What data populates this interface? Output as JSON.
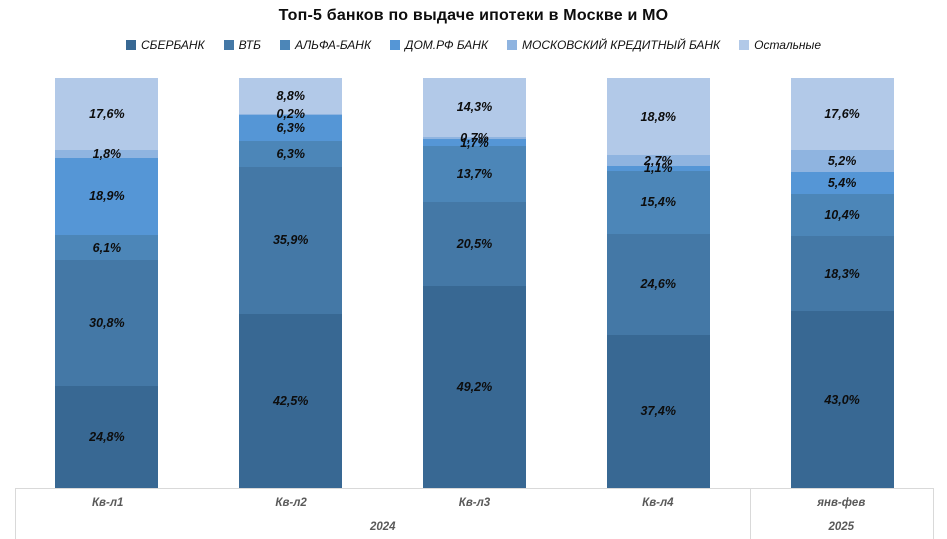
{
  "title": "Топ-5 банков по выдаче ипотеки в Москве и МО",
  "chart_data": {
    "type": "bar",
    "subtype": "stacked-100-percent-column",
    "title": "Топ-5 банков по выдаче ипотеки в Москве и МО",
    "legend_position": "top",
    "grid": false,
    "value_axis_visible": false,
    "ylim": [
      0,
      100
    ],
    "categories": [
      "Кв-л1",
      "Кв-л2",
      "Кв-л3",
      "Кв-л4",
      "янв-фев"
    ],
    "category_groups": [
      {
        "label": "2024",
        "span": 4
      },
      {
        "label": "2025",
        "span": 1
      }
    ],
    "series": [
      {
        "name": "СБЕРБАНК",
        "color": "#386893",
        "values": [
          24.8,
          42.5,
          49.2,
          37.4,
          43.0
        ]
      },
      {
        "name": "ВТБ",
        "color": "#4478A6",
        "values": [
          30.8,
          35.9,
          20.5,
          24.6,
          18.3
        ]
      },
      {
        "name": "АЛЬФА-БАНК",
        "color": "#4C86B8",
        "values": [
          6.1,
          6.3,
          13.7,
          15.4,
          10.4
        ]
      },
      {
        "name": "ДОМ.РФ БАНК",
        "color": "#5596D6",
        "values": [
          18.9,
          6.3,
          1.7,
          1.1,
          5.4
        ]
      },
      {
        "name": "МОСКОВСКИЙ КРЕДИТНЫЙ БАНК",
        "color": "#8FB4E0",
        "values": [
          1.8,
          0.2,
          0.7,
          2.7,
          5.2
        ]
      },
      {
        "name": "Остальные",
        "color": "#B2C9E8",
        "values": [
          17.6,
          8.8,
          14.3,
          18.8,
          17.6
        ]
      }
    ],
    "data_label_format": "0,0%",
    "data_labels_decimal_separator": ","
  },
  "colors": {
    "axis_text": "#595959",
    "axis_border": "#d9d9d9",
    "label_text": "#0d0d0d",
    "background": "#ffffff"
  }
}
